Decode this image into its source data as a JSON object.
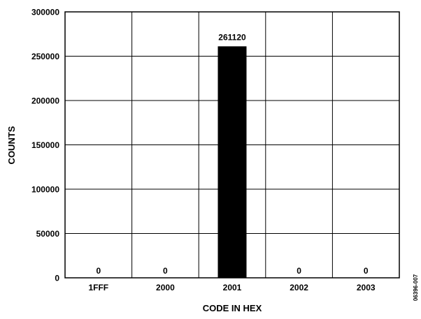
{
  "chart_data": {
    "type": "bar",
    "title": "",
    "xlabel": "CODE IN HEX",
    "ylabel": "COUNTS",
    "categories": [
      "1FFF",
      "2000",
      "2001",
      "2002",
      "2003"
    ],
    "values": [
      0,
      0,
      261120,
      0,
      0
    ],
    "data_labels": [
      "0",
      "0",
      "261120",
      "0",
      "0"
    ],
    "ylim": [
      0,
      300000
    ],
    "yticks": [
      0,
      50000,
      100000,
      150000,
      200000,
      250000,
      300000
    ],
    "ytick_labels": [
      "0",
      "50000",
      "100000",
      "150000",
      "200000",
      "250000",
      "300000"
    ],
    "grid": true,
    "legend": "none",
    "bar_color": "#000000",
    "figure_id": "06396-007"
  }
}
